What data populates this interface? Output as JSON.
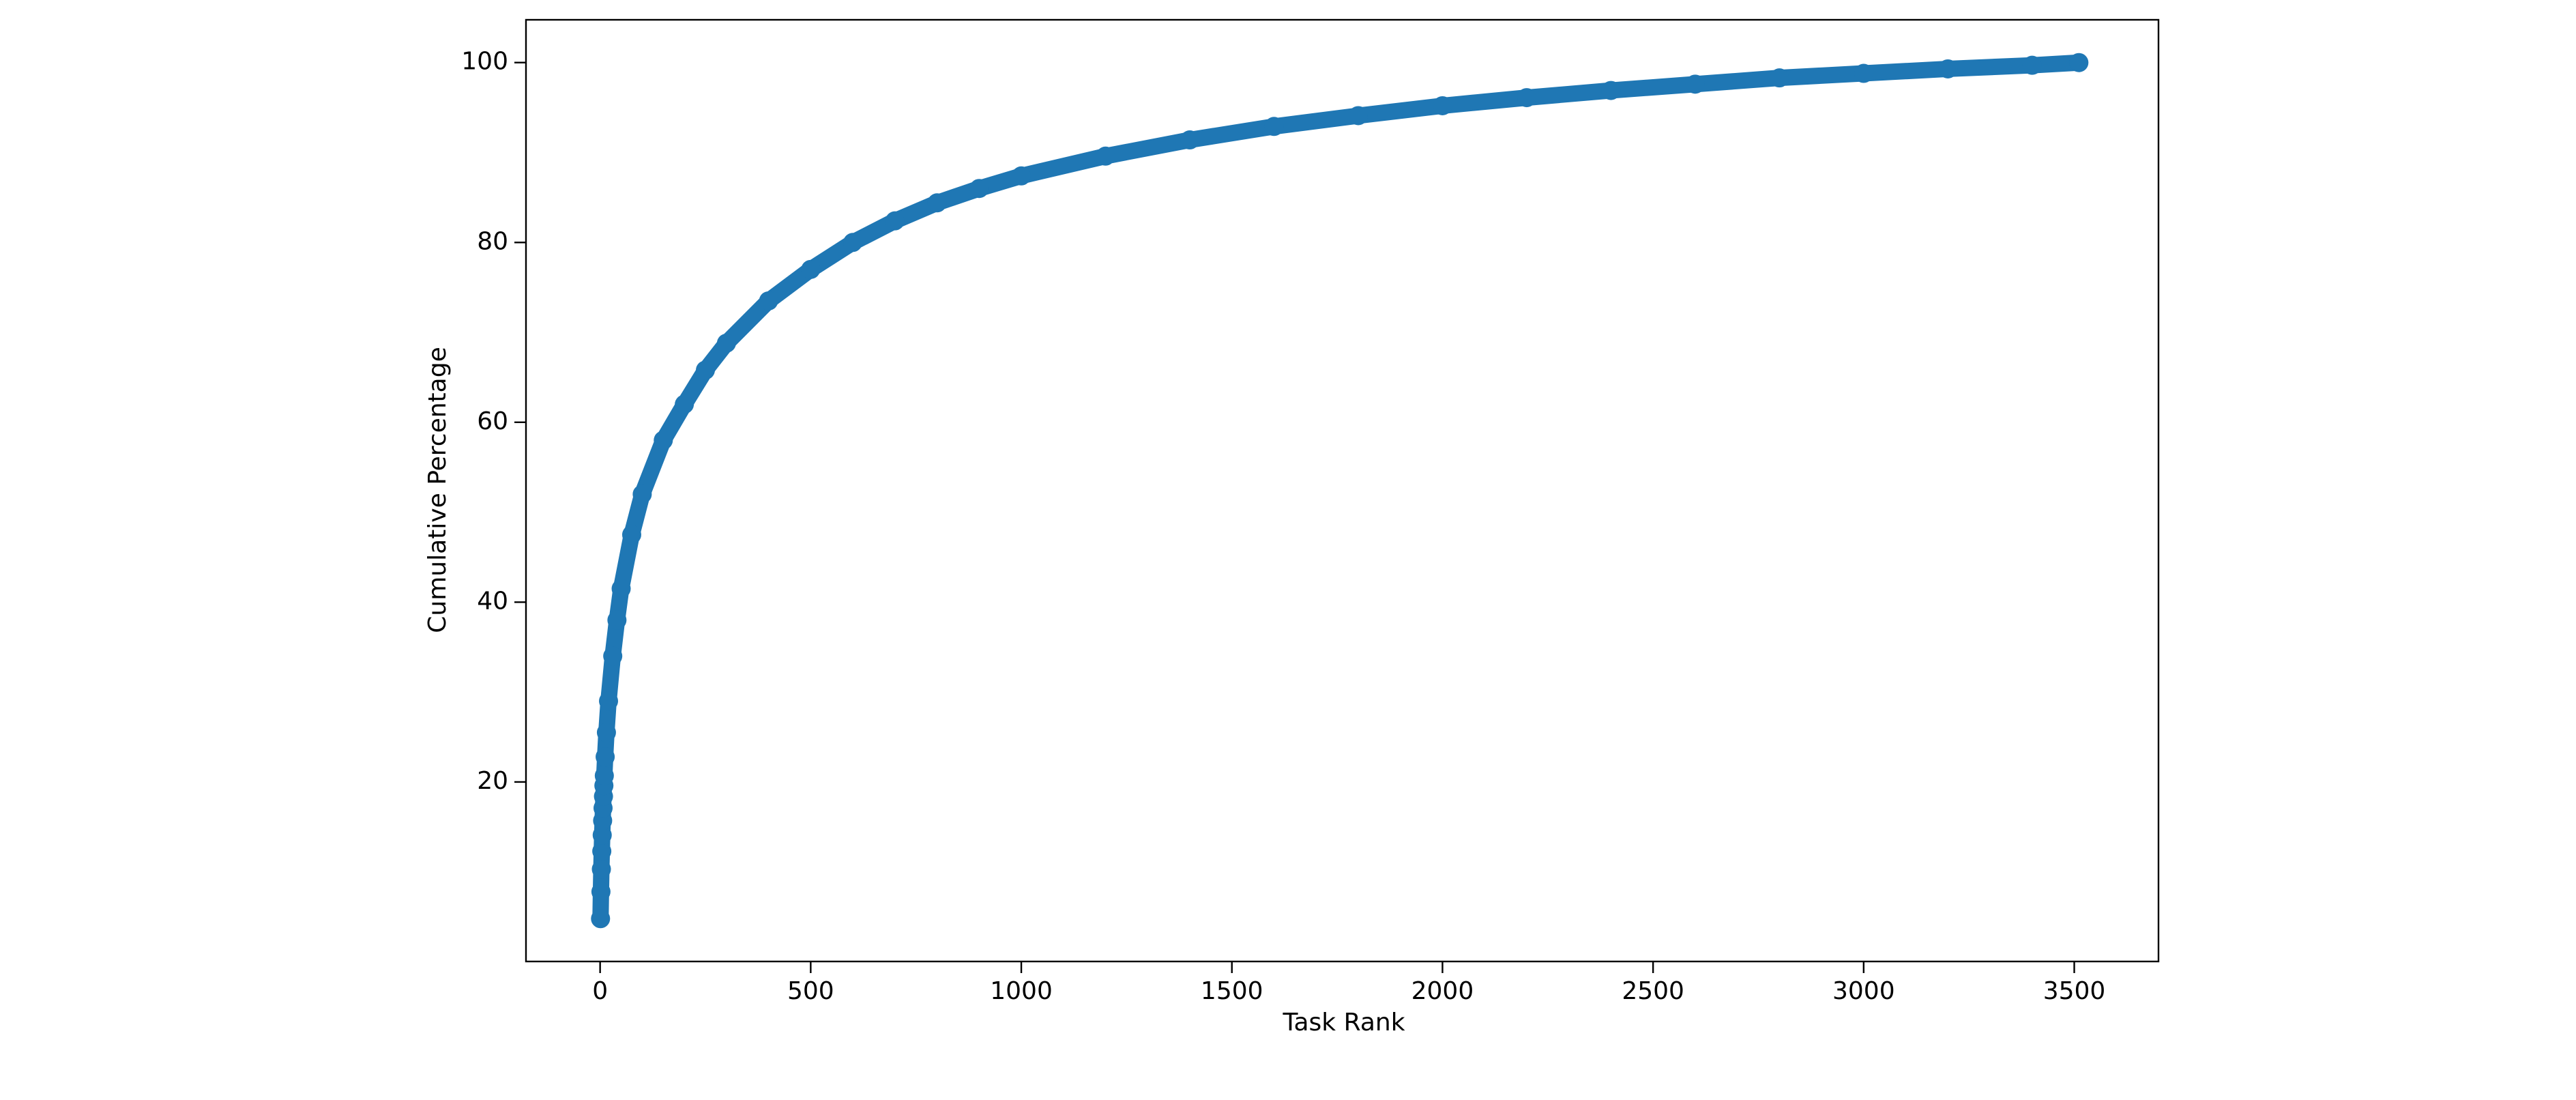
{
  "chart_data": {
    "type": "line",
    "x_label": "Task Rank",
    "y_label": "Cumulative Percentage",
    "x": [
      1,
      2,
      3,
      4,
      5,
      6,
      7,
      8,
      9,
      10,
      12,
      15,
      20,
      30,
      40,
      50,
      75,
      100,
      150,
      200,
      250,
      300,
      400,
      500,
      600,
      700,
      800,
      900,
      1000,
      1200,
      1400,
      1600,
      1800,
      2000,
      2200,
      2400,
      2600,
      2800,
      3000,
      3200,
      3400,
      3511
    ],
    "series": [
      {
        "color": "#1f77b4",
        "marker": true,
        "values": [
          4.8,
          7.8,
          10.3,
          12.3,
          14.1,
          15.7,
          17.1,
          18.4,
          19.6,
          20.7,
          22.8,
          25.5,
          29,
          34,
          38,
          41.5,
          47.5,
          52,
          58,
          62,
          65.8,
          68.8,
          73.5,
          77,
          80,
          82.4,
          84.4,
          86,
          87.4,
          89.6,
          91.4,
          92.9,
          94.1,
          95.2,
          96.1,
          96.9,
          97.6,
          98.3,
          98.8,
          99.3,
          99.7,
          100
        ]
      }
    ],
    "xlim": [
      -176,
      3700
    ],
    "ylim": [
      0.04,
      104.76
    ],
    "xticks": [
      0,
      500,
      1000,
      1500,
      2000,
      2500,
      3000,
      3500
    ],
    "yticks": [
      20,
      40,
      60,
      80,
      100
    ]
  }
}
